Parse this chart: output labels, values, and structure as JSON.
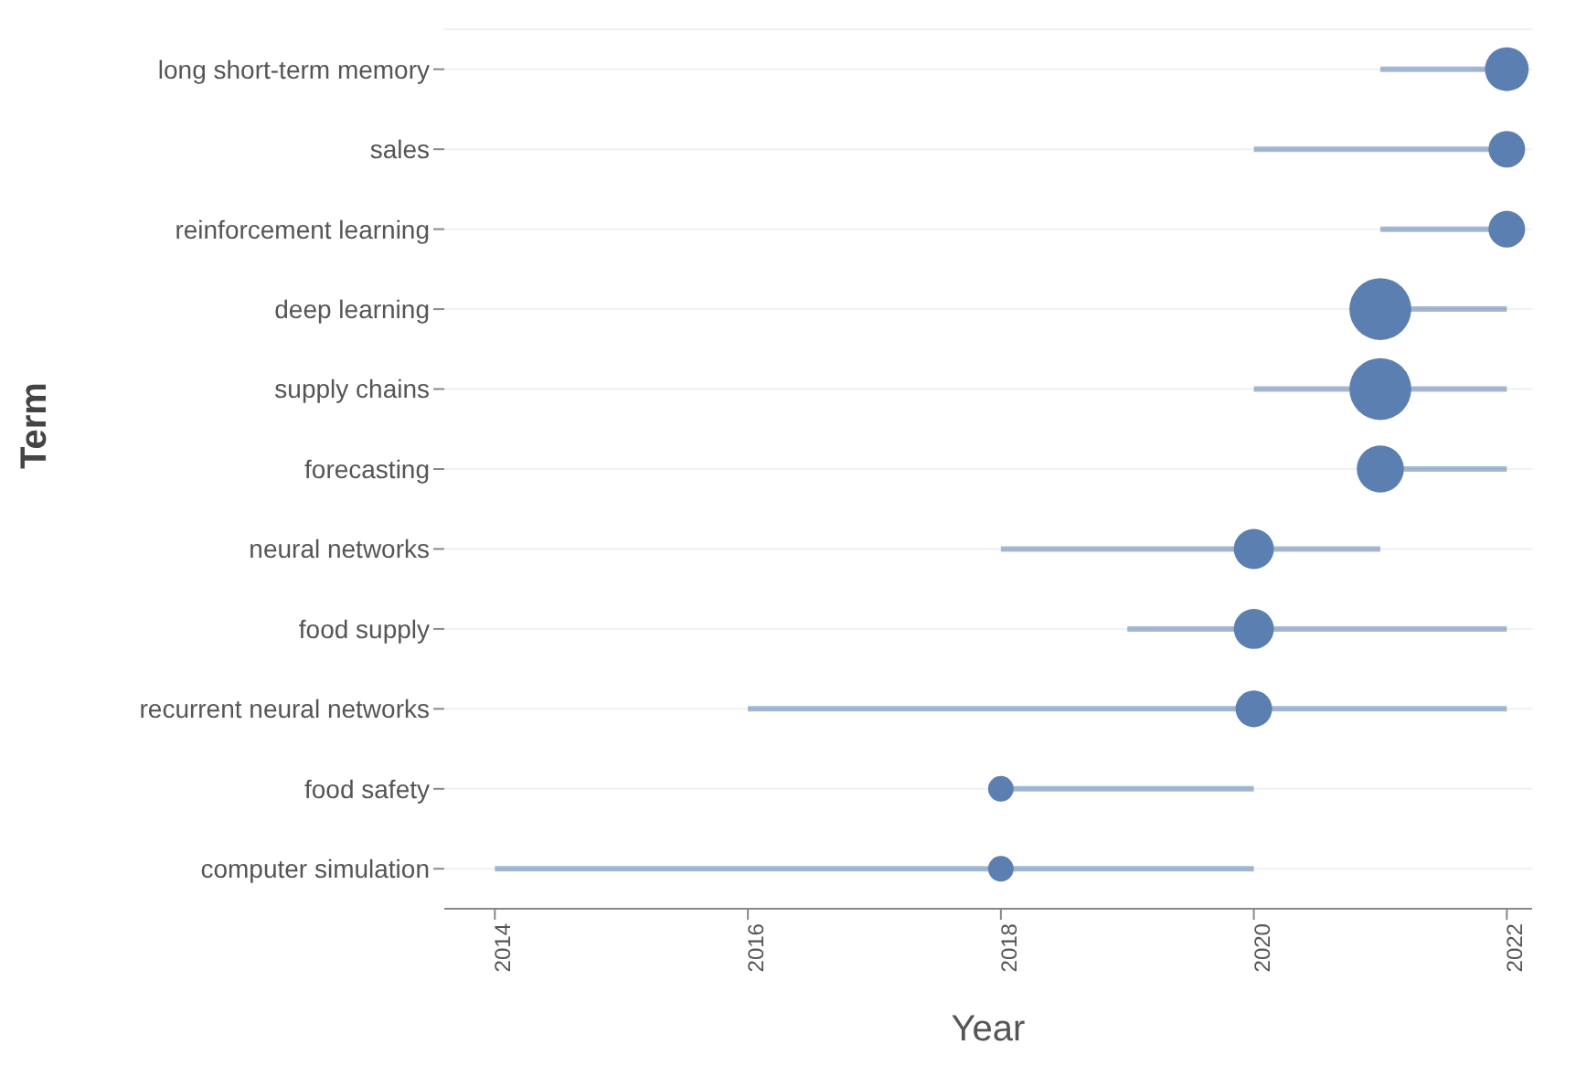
{
  "chart_data": {
    "type": "bubble",
    "orientation": "horizontal",
    "xlabel": "Year",
    "ylabel": "Term",
    "categories": [
      "long short-term memory",
      "sales",
      "reinforcement learning",
      "deep learning",
      "supply chains",
      "forecasting",
      "neural networks",
      "food supply",
      "recurrent neural networks",
      "food safety",
      "computer simulation"
    ],
    "values": [
      2022,
      2022,
      2022,
      2021,
      2021,
      2021,
      2020,
      2020,
      2020,
      2018,
      2018
    ],
    "errors": [
      [
        2021,
        2022
      ],
      [
        2020,
        2022
      ],
      [
        2021,
        2022
      ],
      [
        2021,
        2022
      ],
      [
        2020,
        2022
      ],
      [
        2021,
        2022
      ],
      [
        2018,
        2021
      ],
      [
        2019,
        2022
      ],
      [
        2016,
        2022
      ],
      [
        2018,
        2020
      ],
      [
        2014,
        2020
      ]
    ],
    "sizes": [
      0.5,
      0.35,
      0.35,
      1,
      1,
      0.58,
      0.42,
      0.42,
      0.35,
      0.17,
      0.17
    ],
    "color": "#5b7fb0",
    "xlim": [
      2013.6,
      2022.2
    ],
    "xticks": [
      2014,
      2016,
      2018,
      2020,
      2022
    ],
    "grid": "y"
  }
}
